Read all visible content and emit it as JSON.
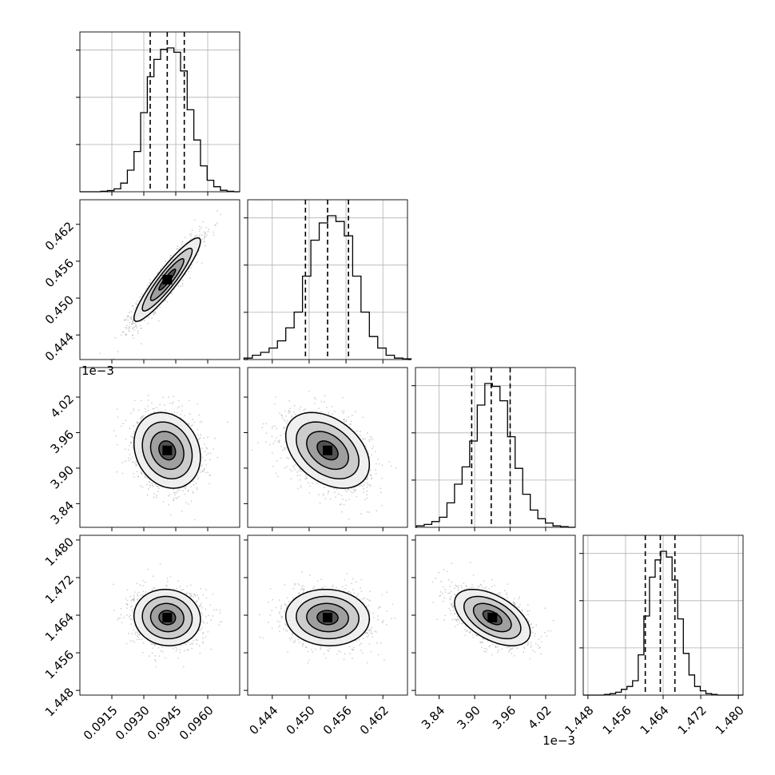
{
  "chart_data": {
    "type": "corner",
    "grid": true,
    "params": [
      {
        "mean": 0.0941,
        "sd": 0.00078,
        "lim": [
          0.09,
          0.0975
        ],
        "ticks": [
          0.0915,
          0.093,
          0.0945,
          0.096
        ],
        "tick_labels": [
          "0.0915",
          "0.0930",
          "0.0945",
          "0.0960"
        ],
        "offset_label": "",
        "quantiles": [
          0.0933,
          0.0941,
          0.0949
        ],
        "hist_values": [
          0.003,
          0.008,
          0.02,
          0.06,
          0.15,
          0.28,
          0.55,
          0.8,
          0.92,
          0.99,
          1.0,
          0.97,
          0.84,
          0.57,
          0.36,
          0.18,
          0.08,
          0.035,
          0.01,
          0.003
        ]
      },
      {
        "mean": 0.453,
        "sd": 0.0034,
        "lim": [
          0.44,
          0.466
        ],
        "ticks": [
          0.444,
          0.45,
          0.456,
          0.462
        ],
        "tick_labels": [
          "0.444",
          "0.450",
          "0.456",
          "0.462"
        ],
        "offset_label": "",
        "quantiles": [
          0.4494,
          0.453,
          0.4564
        ],
        "hist_values": [
          0.01,
          0.03,
          0.05,
          0.08,
          0.13,
          0.22,
          0.33,
          0.58,
          0.83,
          0.95,
          1.0,
          0.96,
          0.86,
          0.58,
          0.33,
          0.16,
          0.08,
          0.03,
          0.01,
          0.005
        ]
      },
      {
        "mean": 3.93,
        "sd": 0.032,
        "lim": [
          3.8,
          4.07
        ],
        "ticks": [
          3.84,
          3.9,
          3.96,
          4.02
        ],
        "tick_labels": [
          "3.84",
          "3.90",
          "3.96",
          "4.02"
        ],
        "offset_label": "1e−3",
        "quantiles": [
          3.895,
          3.928,
          3.96
        ],
        "hist_values": [
          0.01,
          0.02,
          0.04,
          0.07,
          0.17,
          0.3,
          0.42,
          0.6,
          0.85,
          1.0,
          0.98,
          0.88,
          0.63,
          0.41,
          0.23,
          0.12,
          0.06,
          0.03,
          0.01,
          0.005
        ]
      },
      {
        "mean": 1.4635,
        "sd": 0.003,
        "lim": [
          1.447,
          1.481
        ],
        "ticks": [
          1.448,
          1.456,
          1.464,
          1.472,
          1.48
        ],
        "tick_labels": [
          "1.448",
          "1.456",
          "1.464",
          "1.472",
          "1.480"
        ],
        "offset_label": "",
        "quantiles": [
          1.4602,
          1.4634,
          1.4665
        ],
        "hist_values": [
          0.005,
          0.01,
          0.02,
          0.04,
          0.06,
          0.1,
          0.28,
          0.55,
          0.82,
          0.94,
          1.0,
          0.96,
          0.8,
          0.53,
          0.29,
          0.14,
          0.06,
          0.03,
          0.01,
          0.005
        ]
      }
    ],
    "correlations": [
      [
        1.0,
        0.92,
        -0.18,
        -0.06
      ],
      [
        0.92,
        1.0,
        -0.38,
        -0.05
      ],
      [
        -0.18,
        -0.38,
        1.0,
        -0.52
      ],
      [
        -0.06,
        -0.05,
        -0.52,
        1.0
      ]
    ],
    "contour_levels_sigma": [
      0.5,
      1.0,
      1.5,
      2.0
    ],
    "colors": {
      "scatter": "#9a9a9a",
      "line": "#000000",
      "grid": "#b0b0b0"
    }
  }
}
